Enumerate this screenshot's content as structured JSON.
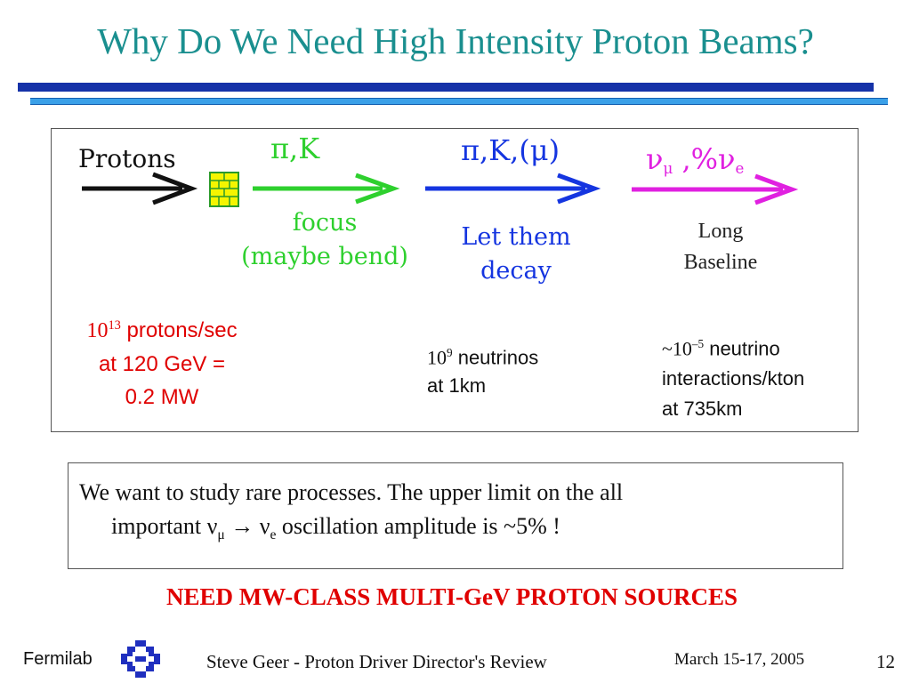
{
  "title": "Why Do We Need High Intensity Proton Beams?",
  "diagram": {
    "protons_label": "Protons",
    "pik_label": "π,K",
    "pik_mu_label": "π,K,(μ)",
    "nu_label_main": "ν",
    "nu_label_sub_mu": "μ",
    "nu_label_mid": " ,%ν",
    "nu_label_sub_e": "e",
    "focus_line1": "focus",
    "focus_line2": "(maybe bend)",
    "decay_line1": "Let them",
    "decay_line2": "decay",
    "baseline_line1": "Long",
    "baseline_line2": "Baseline",
    "protons_rate_base": "10",
    "protons_rate_exp": "13",
    "protons_rate_text": " protons/sec",
    "protons_energy": "at 120 GeV =",
    "protons_power": "0.2 MW",
    "neutrinos_base": "10",
    "neutrinos_exp": "9",
    "neutrinos_text": " neutrinos",
    "neutrinos_distance": "at 1km",
    "interactions_prefix": "~10",
    "interactions_exp": "–5",
    "interactions_text": " neutrino",
    "interactions_line2": "interactions/kton",
    "interactions_line3": "at 735km",
    "colors": {
      "black_arrow": "#111111",
      "green": "#2ed02e",
      "blue": "#1535e0",
      "magenta": "#e020e0",
      "target_yellow": "#f5f500"
    }
  },
  "statement": {
    "line1": "We want to study rare processes. The upper limit on the all",
    "line2_a": "important ν",
    "line2_sub_mu": "μ",
    "line2_arrow": " → ν",
    "line2_sub_e": "e",
    "line2_b": " oscillation amplitude is ~5% !"
  },
  "need": "NEED MW-CLASS MULTI-GeV  PROTON SOURCES",
  "footer": {
    "org": "Fermilab",
    "author": "Steve Geer  - Proton Driver Director's Review",
    "date": "March 15-17, 2005",
    "page": "12"
  }
}
